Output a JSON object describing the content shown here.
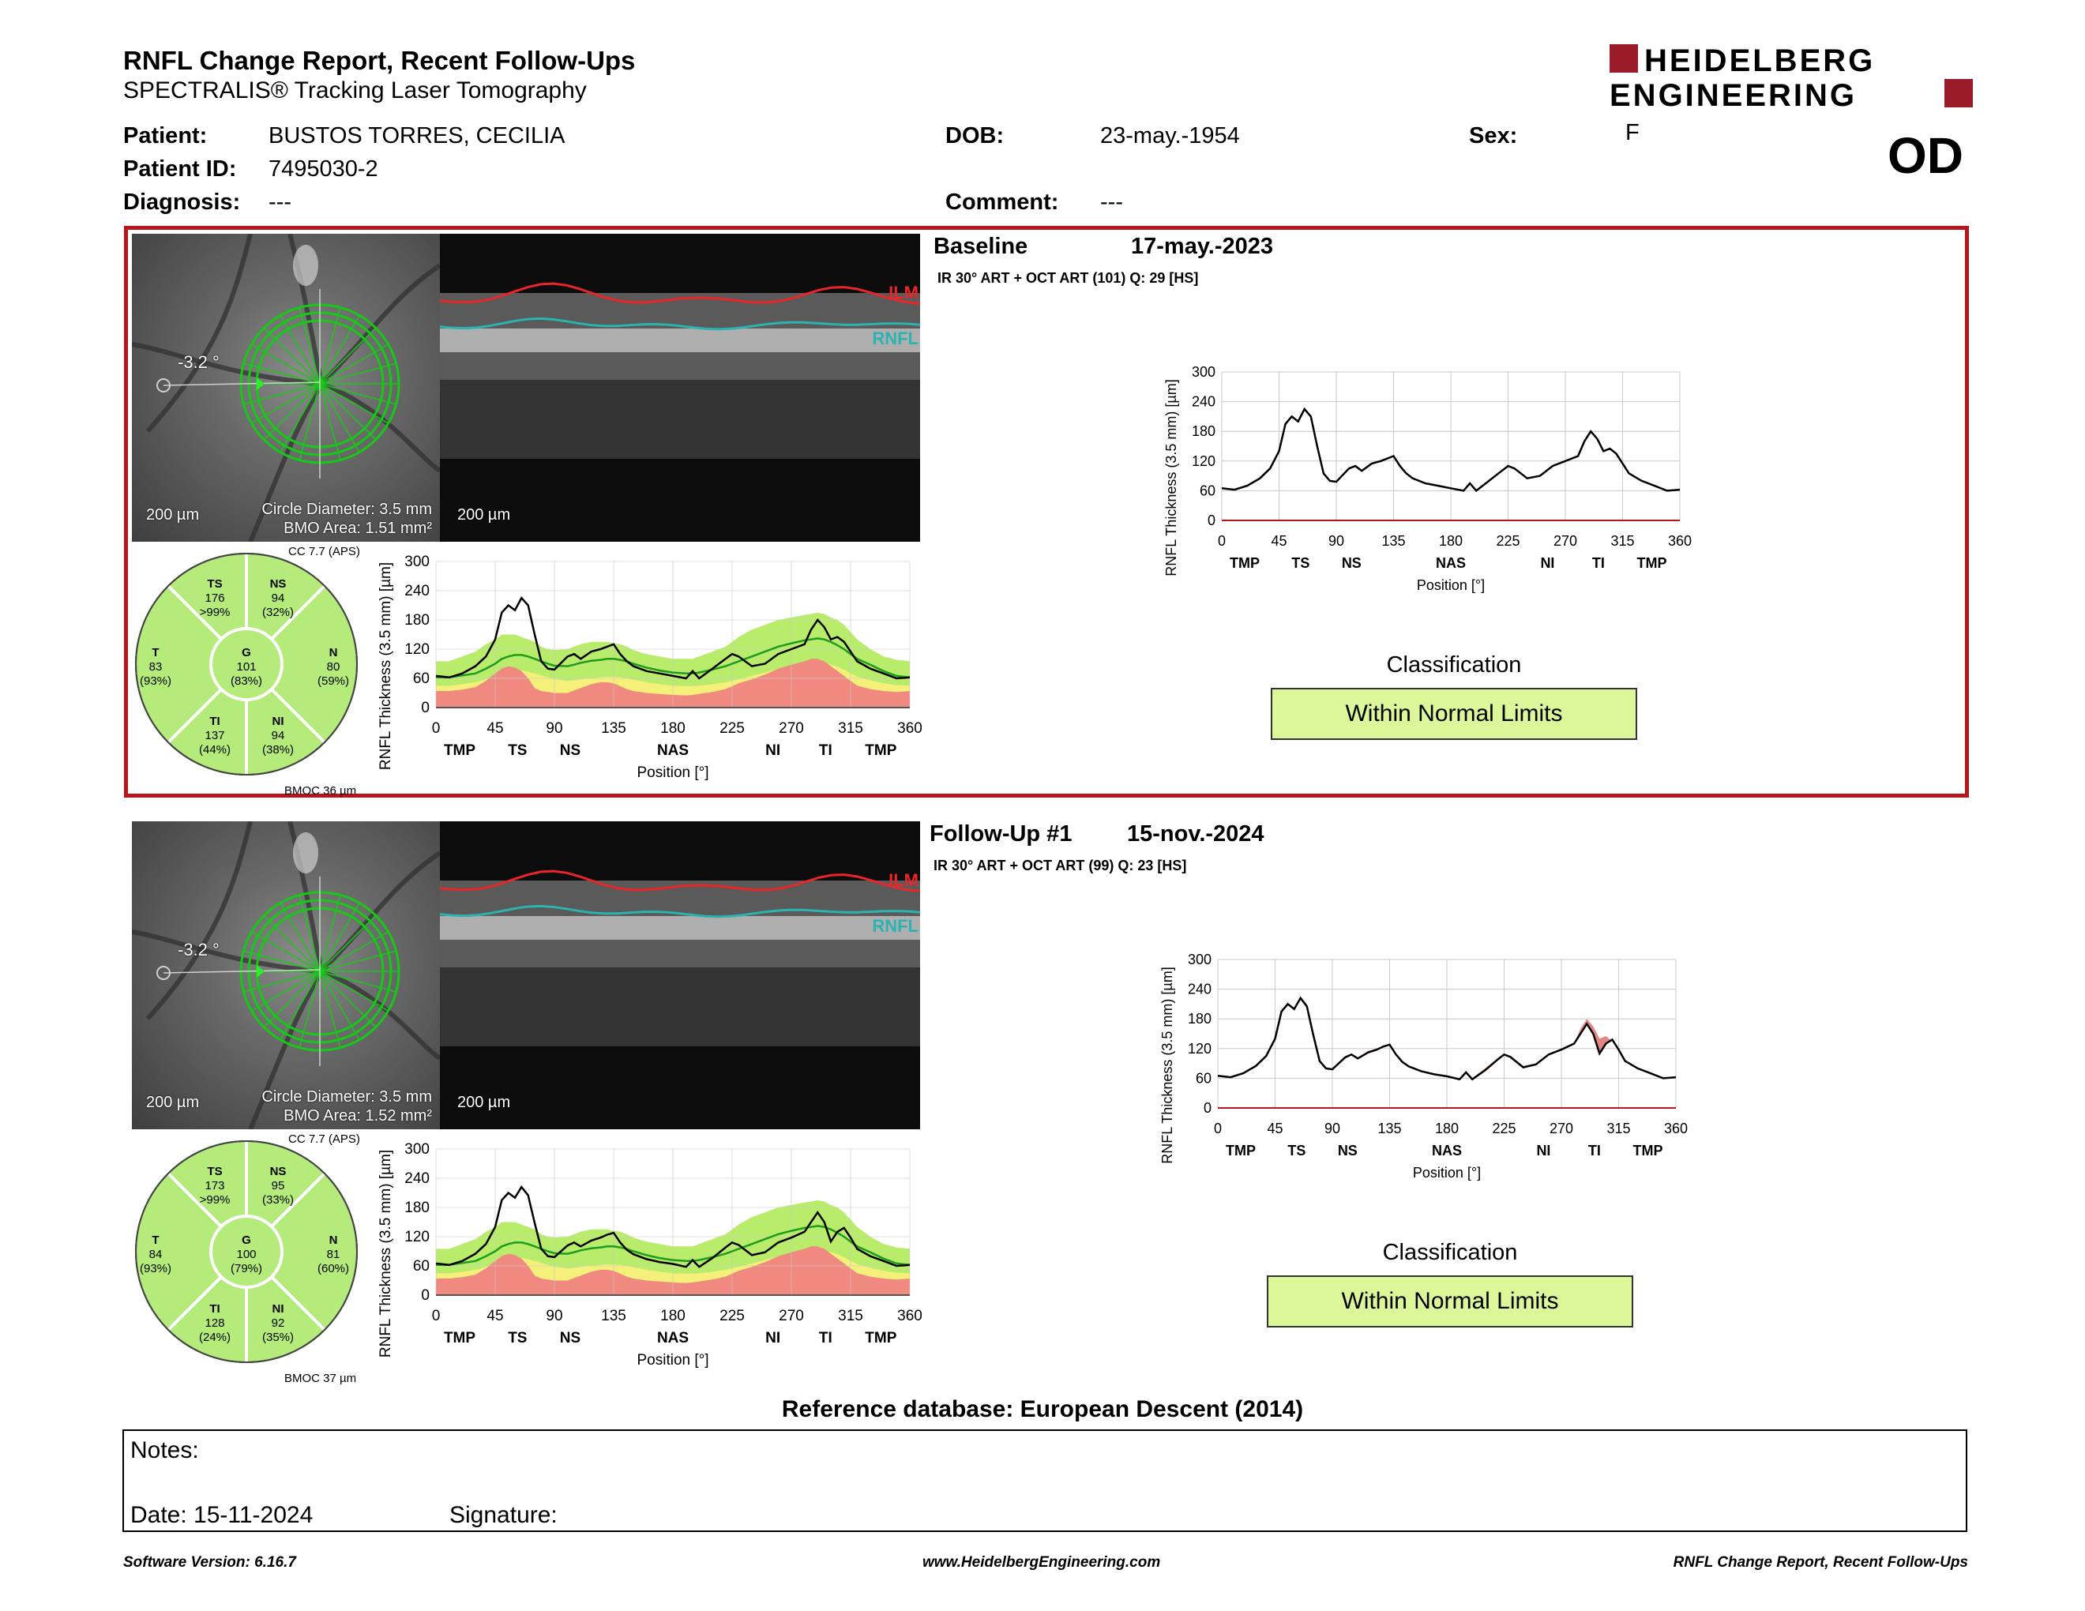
{
  "report": {
    "title": "RNFL Change Report, Recent Follow-Ups",
    "subtitle": "SPECTRALIS® Tracking Laser Tomography",
    "logo_line1": "HEIDELBERG",
    "logo_line2": "ENGINEERING",
    "eye": "OD"
  },
  "patient": {
    "name_label": "Patient:",
    "name": "BUSTOS TORRES, CECILIA",
    "id_label": "Patient ID:",
    "id": "7495030-2",
    "diagnosis_label": "Diagnosis:",
    "diagnosis": "---",
    "dob_label": "DOB:",
    "dob": "23-may.-1954",
    "comment_label": "Comment:",
    "comment": "---",
    "sex_label": "Sex:",
    "sex": "F"
  },
  "colors": {
    "frame": "#b8141c",
    "normal": "#9be04a",
    "borderline": "#f4f07a",
    "outside": "#f08a80",
    "ilm": "#e8262a",
    "rnfl": "#2ab3b0",
    "classification": "#dcf79a"
  },
  "exams": [
    {
      "title": "Baseline",
      "date": "17-may.-2023",
      "acq": "IR 30° ART + OCT ART (101) Q: 29 [HS]",
      "angle": "-3.2 °",
      "scale_fundus": "200 µm",
      "scale_bscan": "200 µm",
      "circle_diameter": "Circle Diameter: 3.5 mm",
      "bmo_area": "BMO Area: 1.51 mm²",
      "cc": "CC 7.7 (APS)",
      "bmoc": "BMOC 36 µm",
      "ilm_label": "ILM",
      "rnfl_label": "RNFL",
      "sectors": {
        "TS": {
          "label": "TS",
          "value": "176",
          "pct": ">99%"
        },
        "NS": {
          "label": "NS",
          "value": "94",
          "pct": "(32%)"
        },
        "T": {
          "label": "T",
          "value": "83",
          "pct": "(93%)"
        },
        "G": {
          "label": "G",
          "value": "101",
          "pct": "(83%)"
        },
        "N": {
          "label": "N",
          "value": "80",
          "pct": "(59%)"
        },
        "TI": {
          "label": "TI",
          "value": "137",
          "pct": "(44%)"
        },
        "NI": {
          "label": "NI",
          "value": "94",
          "pct": "(38%)"
        }
      },
      "classification_label": "Classification",
      "classification": "Within Normal Limits"
    },
    {
      "title": "Follow-Up #1",
      "date": "15-nov.-2024",
      "acq": "IR 30° ART + OCT ART (99) Q: 23 [HS]",
      "angle": "-3.2 °",
      "scale_fundus": "200 µm",
      "scale_bscan": "200 µm",
      "circle_diameter": "Circle Diameter: 3.5 mm",
      "bmo_area": "BMO Area: 1.52 mm²",
      "cc": "CC 7.7 (APS)",
      "bmoc": "BMOC 37 µm",
      "ilm_label": "ILM",
      "rnfl_label": "RNFL",
      "sectors": {
        "TS": {
          "label": "TS",
          "value": "173",
          "pct": ">99%"
        },
        "NS": {
          "label": "NS",
          "value": "95",
          "pct": "(33%)"
        },
        "T": {
          "label": "T",
          "value": "84",
          "pct": "(93%)"
        },
        "G": {
          "label": "G",
          "value": "100",
          "pct": "(79%)"
        },
        "N": {
          "label": "N",
          "value": "81",
          "pct": "(60%)"
        },
        "TI": {
          "label": "TI",
          "value": "128",
          "pct": "(24%)"
        },
        "NI": {
          "label": "NI",
          "value": "92",
          "pct": "(35%)"
        }
      },
      "classification_label": "Classification",
      "classification": "Within Normal Limits"
    }
  ],
  "chart_data": [
    {
      "type": "line",
      "ylabel": "RNFL Thickness (3.5 mm) [µm]",
      "xlabel": "Position [°]",
      "x_ticks": [
        0,
        45,
        90,
        135,
        180,
        225,
        270,
        315,
        360
      ],
      "y_ticks": [
        0,
        60,
        120,
        180,
        240,
        300
      ],
      "xlim": [
        0,
        360
      ],
      "ylim": [
        0,
        300
      ],
      "sector_labels": [
        {
          "x": 18,
          "label": "TMP"
        },
        {
          "x": 62,
          "label": "TS"
        },
        {
          "x": 102,
          "label": "NS"
        },
        {
          "x": 180,
          "label": "NAS"
        },
        {
          "x": 256,
          "label": "NI"
        },
        {
          "x": 296,
          "label": "TI"
        },
        {
          "x": 338,
          "label": "TMP"
        }
      ],
      "x": [
        0,
        10,
        20,
        30,
        38,
        45,
        50,
        55,
        60,
        65,
        70,
        75,
        80,
        85,
        90,
        100,
        105,
        110,
        118,
        125,
        130,
        135,
        140,
        145,
        150,
        160,
        170,
        180,
        190,
        195,
        200,
        210,
        220,
        225,
        230,
        240,
        250,
        260,
        270,
        280,
        285,
        290,
        295,
        300,
        305,
        310,
        315,
        320,
        330,
        340,
        350,
        360
      ],
      "series": [
        {
          "values": [
            65,
            62,
            70,
            85,
            105,
            140,
            195,
            210,
            200,
            225,
            210,
            150,
            95,
            80,
            78,
            105,
            110,
            100,
            115,
            120,
            125,
            130,
            110,
            95,
            85,
            75,
            70,
            65,
            60,
            75,
            60,
            80,
            100,
            110,
            105,
            85,
            90,
            110,
            120,
            130,
            160,
            180,
            165,
            140,
            145,
            135,
            115,
            95,
            80,
            70,
            60,
            62
          ]
        }
      ],
      "normative_bands": {
        "upper_normal": [
          95,
          95,
          105,
          115,
          130,
          140,
          150,
          150,
          150,
          145,
          140,
          135,
          125,
          120,
          118,
          120,
          125,
          130,
          135,
          135,
          135,
          132,
          130,
          125,
          118,
          110,
          105,
          100,
          100,
          100,
          105,
          115,
          125,
          135,
          145,
          160,
          170,
          180,
          185,
          190,
          192,
          195,
          192,
          185,
          180,
          170,
          155,
          140,
          120,
          105,
          98,
          95
        ],
        "mean": [
          62,
          62,
          66,
          70,
          80,
          90,
          100,
          105,
          108,
          108,
          105,
          100,
          95,
          90,
          86,
          85,
          88,
          92,
          96,
          98,
          100,
          100,
          98,
          95,
          90,
          82,
          76,
          72,
          70,
          70,
          72,
          78,
          85,
          90,
          95,
          105,
          115,
          125,
          132,
          138,
          140,
          142,
          140,
          135,
          128,
          120,
          110,
          100,
          88,
          75,
          65,
          62
        ],
        "lower_normal": [
          45,
          45,
          48,
          52,
          58,
          65,
          70,
          74,
          76,
          76,
          74,
          70,
          66,
          62,
          58,
          55,
          56,
          58,
          60,
          62,
          63,
          63,
          62,
          60,
          57,
          52,
          48,
          45,
          44,
          44,
          45,
          48,
          52,
          55,
          58,
          65,
          72,
          80,
          86,
          90,
          92,
          93,
          92,
          88,
          84,
          78,
          70,
          64,
          56,
          50,
          46,
          45
        ],
        "borderline": [
          38,
          38,
          40,
          43,
          48,
          53,
          58,
          62,
          63,
          63,
          61,
          58,
          54,
          50,
          46,
          44,
          45,
          47,
          49,
          50,
          51,
          51,
          50,
          48,
          45,
          40,
          37,
          35,
          34,
          34,
          35,
          37,
          40,
          43,
          46,
          52,
          58,
          65,
          70,
          74,
          76,
          77,
          76,
          72,
          68,
          63,
          57,
          51,
          45,
          40,
          38,
          38
        ],
        "outside": [
          34,
          34,
          37,
          42,
          55,
          70,
          80,
          85,
          82,
          75,
          60,
          40,
          34,
          32,
          30,
          30,
          35,
          40,
          48,
          52,
          52,
          50,
          44,
          38,
          34,
          30,
          28,
          26,
          25,
          26,
          28,
          32,
          38,
          44,
          50,
          58,
          68,
          80,
          88,
          95,
          100,
          100,
          95,
          85,
          75,
          65,
          55,
          45,
          38,
          34,
          32,
          34
        ]
      }
    },
    {
      "type": "line",
      "ylabel": "RNFL Thickness (3.5 mm) [µm]",
      "xlabel": "Position [°]",
      "x_ticks": [
        0,
        45,
        90,
        135,
        180,
        225,
        270,
        315,
        360
      ],
      "y_ticks": [
        0,
        60,
        120,
        180,
        240,
        300
      ],
      "xlim": [
        0,
        360
      ],
      "ylim": [
        0,
        300
      ],
      "sector_labels": [
        {
          "x": 18,
          "label": "TMP"
        },
        {
          "x": 62,
          "label": "TS"
        },
        {
          "x": 102,
          "label": "NS"
        },
        {
          "x": 180,
          "label": "NAS"
        },
        {
          "x": 256,
          "label": "NI"
        },
        {
          "x": 296,
          "label": "TI"
        },
        {
          "x": 338,
          "label": "TMP"
        }
      ],
      "x": [
        0,
        10,
        20,
        30,
        38,
        45,
        50,
        55,
        60,
        65,
        70,
        75,
        80,
        85,
        90,
        100,
        105,
        110,
        118,
        125,
        130,
        135,
        140,
        145,
        150,
        160,
        170,
        180,
        190,
        195,
        200,
        210,
        220,
        225,
        230,
        240,
        250,
        260,
        270,
        280,
        285,
        290,
        295,
        300,
        305,
        310,
        315,
        320,
        330,
        340,
        350,
        360
      ],
      "series": [
        {
          "values": [
            65,
            62,
            70,
            85,
            105,
            140,
            195,
            210,
            200,
            222,
            205,
            148,
            95,
            80,
            78,
            102,
            108,
            100,
            112,
            118,
            124,
            128,
            108,
            93,
            84,
            74,
            68,
            64,
            58,
            72,
            58,
            76,
            98,
            108,
            103,
            82,
            88,
            108,
            118,
            130,
            150,
            170,
            150,
            110,
            130,
            138,
            118,
            95,
            80,
            70,
            60,
            62
          ]
        }
      ],
      "normative_bands": {
        "upper_normal": [
          95,
          95,
          105,
          115,
          130,
          140,
          150,
          150,
          150,
          145,
          140,
          135,
          125,
          120,
          118,
          120,
          125,
          130,
          135,
          135,
          135,
          132,
          130,
          125,
          118,
          110,
          105,
          100,
          100,
          100,
          105,
          115,
          125,
          135,
          145,
          160,
          170,
          180,
          185,
          190,
          192,
          195,
          192,
          185,
          180,
          170,
          155,
          140,
          120,
          105,
          98,
          95
        ],
        "mean": [
          62,
          62,
          66,
          70,
          80,
          90,
          100,
          105,
          108,
          108,
          105,
          100,
          95,
          90,
          86,
          85,
          88,
          92,
          96,
          98,
          100,
          100,
          98,
          95,
          90,
          82,
          76,
          72,
          70,
          70,
          72,
          78,
          85,
          90,
          95,
          105,
          115,
          125,
          132,
          138,
          140,
          142,
          140,
          135,
          128,
          120,
          110,
          100,
          88,
          75,
          65,
          62
        ],
        "lower_normal": [
          45,
          45,
          48,
          52,
          58,
          65,
          70,
          74,
          76,
          76,
          74,
          70,
          66,
          62,
          58,
          55,
          56,
          58,
          60,
          62,
          63,
          63,
          62,
          60,
          57,
          52,
          48,
          45,
          44,
          44,
          45,
          48,
          52,
          55,
          58,
          65,
          72,
          80,
          86,
          90,
          92,
          93,
          92,
          88,
          84,
          78,
          70,
          64,
          56,
          50,
          46,
          45
        ],
        "borderline": [
          38,
          38,
          40,
          43,
          48,
          53,
          58,
          62,
          63,
          63,
          61,
          58,
          54,
          50,
          46,
          44,
          45,
          47,
          49,
          50,
          51,
          51,
          50,
          48,
          45,
          40,
          37,
          35,
          34,
          34,
          35,
          37,
          40,
          43,
          46,
          52,
          58,
          65,
          70,
          74,
          76,
          77,
          76,
          72,
          68,
          63,
          57,
          51,
          45,
          40,
          38,
          38
        ],
        "outside": [
          34,
          34,
          37,
          42,
          55,
          70,
          80,
          85,
          82,
          75,
          60,
          40,
          34,
          32,
          30,
          30,
          35,
          40,
          48,
          52,
          52,
          50,
          44,
          38,
          34,
          30,
          28,
          26,
          25,
          26,
          28,
          32,
          38,
          44,
          50,
          58,
          68,
          80,
          88,
          95,
          100,
          100,
          95,
          85,
          75,
          65,
          55,
          45,
          38,
          34,
          32,
          34
        ]
      }
    }
  ],
  "footer_section": {
    "reference": "Reference database: European Descent (2014)",
    "notes_label": "Notes:",
    "date_label": "Date: 15-11-2024",
    "signature_label": "Signature:",
    "software": "Software Version: 6.16.7",
    "website": "www.HeidelbergEngineering.com",
    "report_name": "RNFL Change Report, Recent Follow-Ups"
  }
}
